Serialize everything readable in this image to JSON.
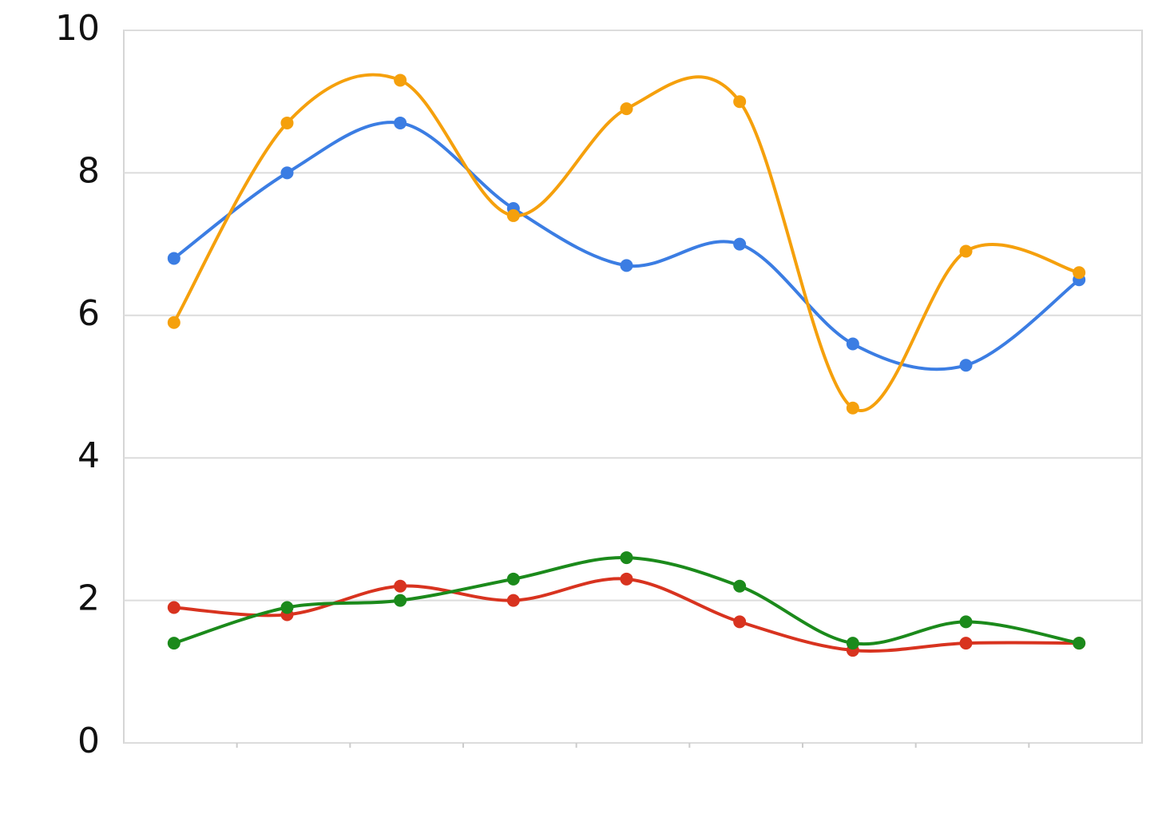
{
  "chart_data": {
    "type": "line",
    "curve": "smooth",
    "categories": [
      null,
      null,
      null,
      null,
      null,
      null,
      null,
      null,
      null
    ],
    "series": [
      {
        "color": "#3b7de3",
        "values": [
          6.8,
          8.0,
          8.7,
          7.5,
          6.7,
          7.0,
          5.6,
          5.3,
          6.5
        ]
      },
      {
        "color": "#f5a00c",
        "values": [
          5.9,
          8.7,
          9.3,
          7.4,
          8.9,
          9.0,
          4.7,
          6.9,
          6.6
        ]
      },
      {
        "color": "#d8331f",
        "values": [
          1.9,
          1.8,
          2.2,
          2.0,
          2.3,
          1.7,
          1.3,
          1.4,
          1.4
        ]
      },
      {
        "color": "#1b8a1b",
        "values": [
          1.4,
          1.9,
          2.0,
          2.3,
          2.6,
          2.2,
          1.4,
          1.7,
          1.4
        ]
      }
    ],
    "ylim": [
      0,
      10
    ],
    "yticks": [
      0,
      2,
      4,
      6,
      8,
      10
    ],
    "grid": true
  }
}
